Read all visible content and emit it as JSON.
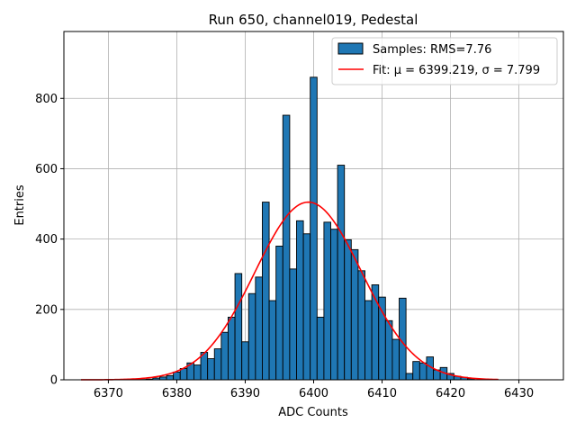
{
  "chart_data": {
    "type": "bar",
    "title": "Run 650, channel019, Pedestal",
    "xlabel": "ADC Counts",
    "ylabel": "Entries",
    "xlim": [
      6363.5,
      6436.5
    ],
    "ylim": [
      0,
      990
    ],
    "x_ticks": [
      6370,
      6380,
      6390,
      6400,
      6410,
      6420,
      6430
    ],
    "y_ticks": [
      0,
      200,
      400,
      600,
      800
    ],
    "grid": true,
    "legend_position": "top-right",
    "colors": {
      "bars": "#1f77b4",
      "bar_edge": "#000000",
      "fit": "#ff0000"
    },
    "histogram": {
      "name": "Samples: RMS=7.76",
      "bin_width": 1,
      "bin_centers": [
        6375,
        6376,
        6377,
        6378,
        6379,
        6380,
        6381,
        6382,
        6383,
        6384,
        6385,
        6386,
        6387,
        6388,
        6389,
        6390,
        6391,
        6392,
        6393,
        6394,
        6395,
        6396,
        6397,
        6398,
        6399,
        6400,
        6401,
        6402,
        6403,
        6404,
        6405,
        6406,
        6407,
        6408,
        6409,
        6410,
        6411,
        6412,
        6413,
        6414,
        6415,
        6416,
        6417,
        6418,
        6419,
        6420,
        6421,
        6422,
        6423
      ],
      "values": [
        1,
        2,
        5,
        8,
        12,
        22,
        32,
        48,
        42,
        78,
        60,
        88,
        135,
        178,
        302,
        108,
        245,
        292,
        505,
        225,
        380,
        752,
        315,
        452,
        415,
        860,
        178,
        448,
        428,
        610,
        398,
        370,
        310,
        225,
        270,
        235,
        168,
        115,
        232,
        18,
        52,
        48,
        65,
        28,
        35,
        18,
        10,
        7,
        3
      ]
    },
    "fit": {
      "name": "Fit: μ = 6399.219, σ = 7.799",
      "mu": 6399.219,
      "sigma": 7.799,
      "amplitude": 505,
      "x_range": [
        6366,
        6427
      ]
    }
  }
}
